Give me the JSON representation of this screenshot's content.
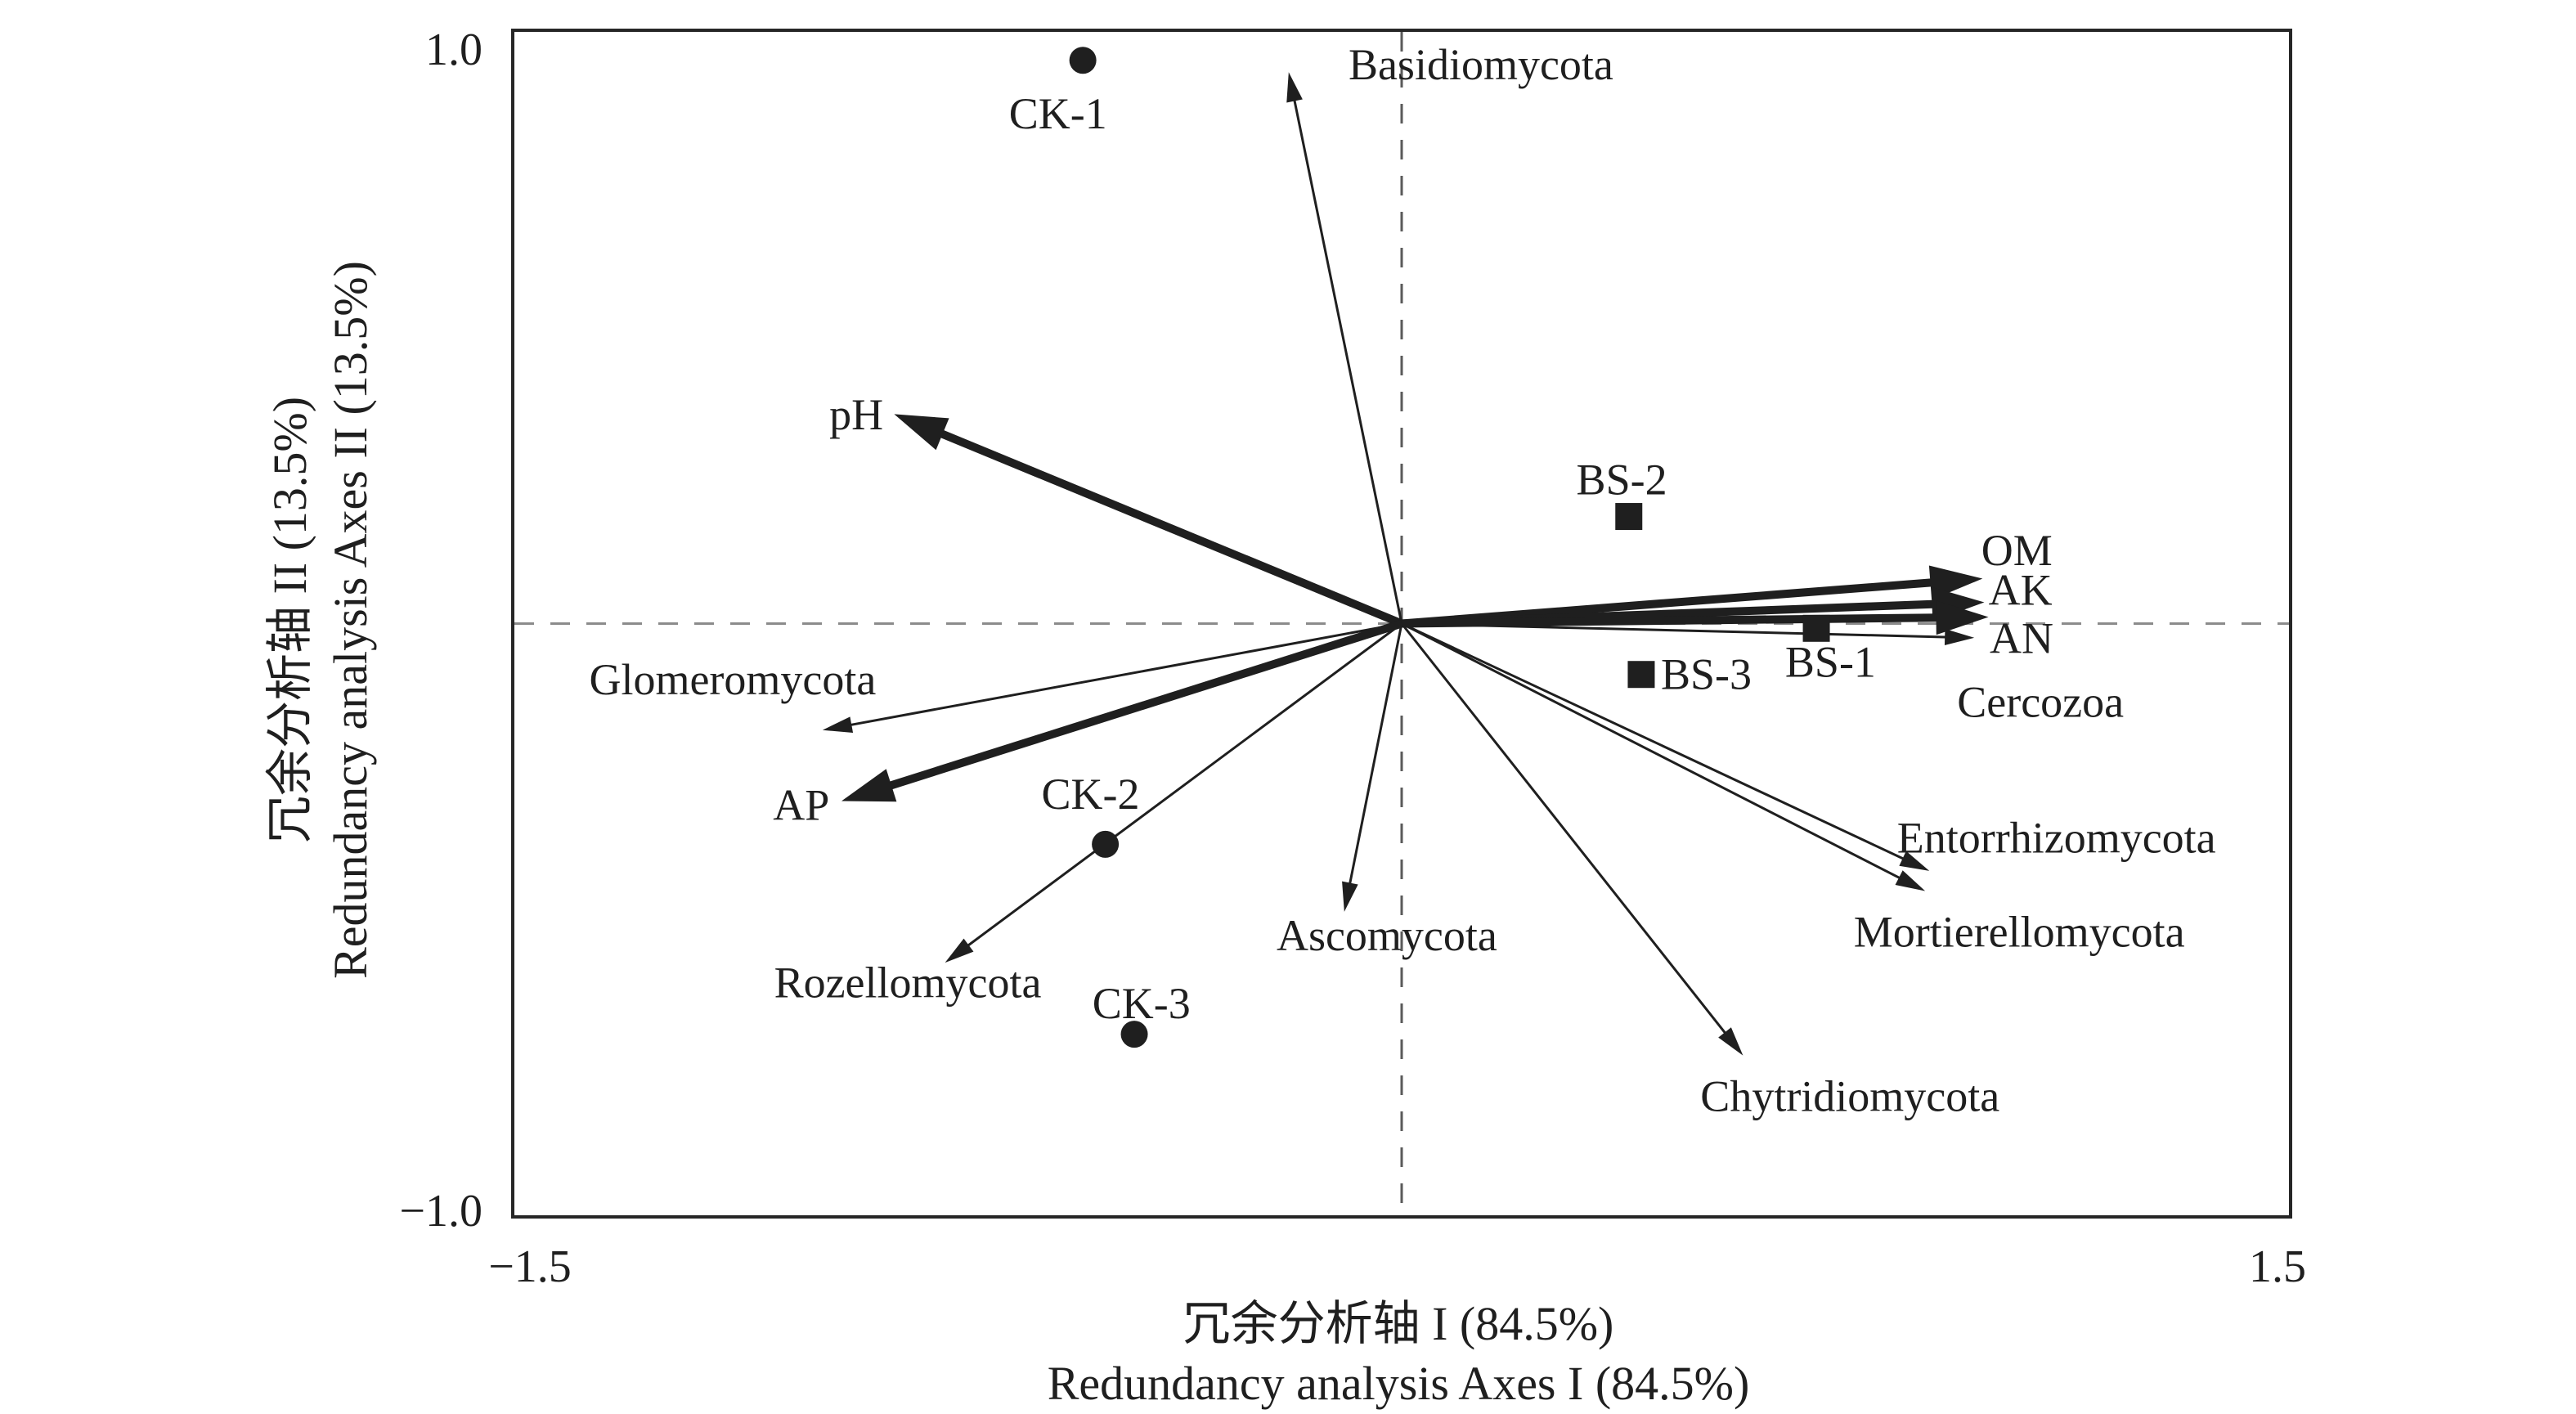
{
  "figure": {
    "background": "#ffffff",
    "ink_color": "#1f1f1f",
    "border_color": "#262626",
    "dash_h_color": "#8c8c8c",
    "dash_v_color": "#5a5a5a"
  },
  "ticks": {
    "y_top": "1.0",
    "y_bottom": "−1.0",
    "x_left": "−1.5",
    "x_right": "1.5"
  },
  "chart_data": {
    "type": "scatter",
    "subtype": "rda-biplot",
    "grid": "dashed zero-lines only",
    "x_axis": {
      "label_zh": "冗余分析轴 I (84.5%)",
      "label_en": "Redundancy analysis Axes I (84.5%)",
      "min": -1.5,
      "max": 1.5,
      "tick_values": [
        -1.5,
        1.5
      ],
      "explained_pct": 84.5
    },
    "y_axis": {
      "label_zh": "冗余分析轴 II (13.5%)",
      "label_en": "Redundancy analysis Axes II (13.5%)",
      "min": -1.0,
      "max": 1.0,
      "tick_values": [
        1.0,
        -1.0
      ],
      "explained_pct": 13.5
    },
    "samples": [
      {
        "name": "CK-1",
        "marker": "circle",
        "x": -0.539,
        "y": 0.952,
        "label": {
          "x": -0.581,
          "y": 0.862
        }
      },
      {
        "name": "CK-2",
        "marker": "circle",
        "x": -0.501,
        "y": -0.373,
        "label": {
          "x": -0.526,
          "y": -0.288
        }
      },
      {
        "name": "CK-3",
        "marker": "circle",
        "x": -0.452,
        "y": -0.694,
        "label": {
          "x": -0.44,
          "y": -0.642
        }
      },
      {
        "name": "BS-1",
        "marker": "square",
        "x": 0.701,
        "y": -0.008,
        "label": {
          "x": 0.725,
          "y": -0.065
        }
      },
      {
        "name": "BS-2",
        "marker": "square",
        "x": 0.384,
        "y": 0.181,
        "label": {
          "x": 0.372,
          "y": 0.243
        }
      },
      {
        "name": "BS-3",
        "marker": "square",
        "x": 0.405,
        "y": -0.086,
        "label": {
          "x": 0.515,
          "y": -0.086
        }
      }
    ],
    "env_arrows": [
      {
        "name": "pH",
        "x": -0.858,
        "y": 0.354,
        "label": {
          "x": -0.922,
          "y": 0.353
        }
      },
      {
        "name": "AP",
        "x": -0.947,
        "y": -0.3,
        "label": {
          "x": -1.015,
          "y": -0.307
        }
      },
      {
        "name": "OM",
        "x": 0.982,
        "y": 0.076,
        "label": {
          "x": 1.04,
          "y": 0.124
        }
      },
      {
        "name": "AK",
        "x": 0.985,
        "y": 0.036,
        "label": {
          "x": 1.046,
          "y": 0.057
        }
      },
      {
        "name": "AN",
        "x": 0.992,
        "y": 0.011,
        "label": {
          "x": 1.048,
          "y": -0.025
        }
      }
    ],
    "species_arrows": [
      {
        "name": "Basidiomycota",
        "x": -0.191,
        "y": 0.932,
        "label": {
          "x": 0.134,
          "y": 0.945
        }
      },
      {
        "name": "Glomeromycota",
        "x": -0.979,
        "y": -0.18,
        "label": {
          "x": -1.131,
          "y": -0.095
        }
      },
      {
        "name": "Rozellomycota",
        "x": -0.772,
        "y": -0.573,
        "label": {
          "x": -0.835,
          "y": -0.607
        }
      },
      {
        "name": "Ascomycota",
        "x": -0.097,
        "y": -0.487,
        "label": {
          "x": -0.025,
          "y": -0.527
        }
      },
      {
        "name": "Chytridiomycota",
        "x": 0.577,
        "y": -0.73,
        "label": {
          "x": 0.758,
          "y": -0.799
        }
      },
      {
        "name": "Entorrhizomycota",
        "x": 0.892,
        "y": -0.418,
        "label": {
          "x": 1.107,
          "y": -0.362
        }
      },
      {
        "name": "Mortierellomycota",
        "x": 0.885,
        "y": -0.452,
        "label": {
          "x": 1.044,
          "y": -0.521
        }
      },
      {
        "name": "Cercozoa",
        "x": 0.968,
        "y": -0.024,
        "label": {
          "x": 1.08,
          "y": -0.133
        }
      }
    ],
    "style": {
      "marker_size_px": 33,
      "env_arrow_stroke_px": 10,
      "species_arrow_stroke_px": 3,
      "label_font_px": 54
    }
  }
}
